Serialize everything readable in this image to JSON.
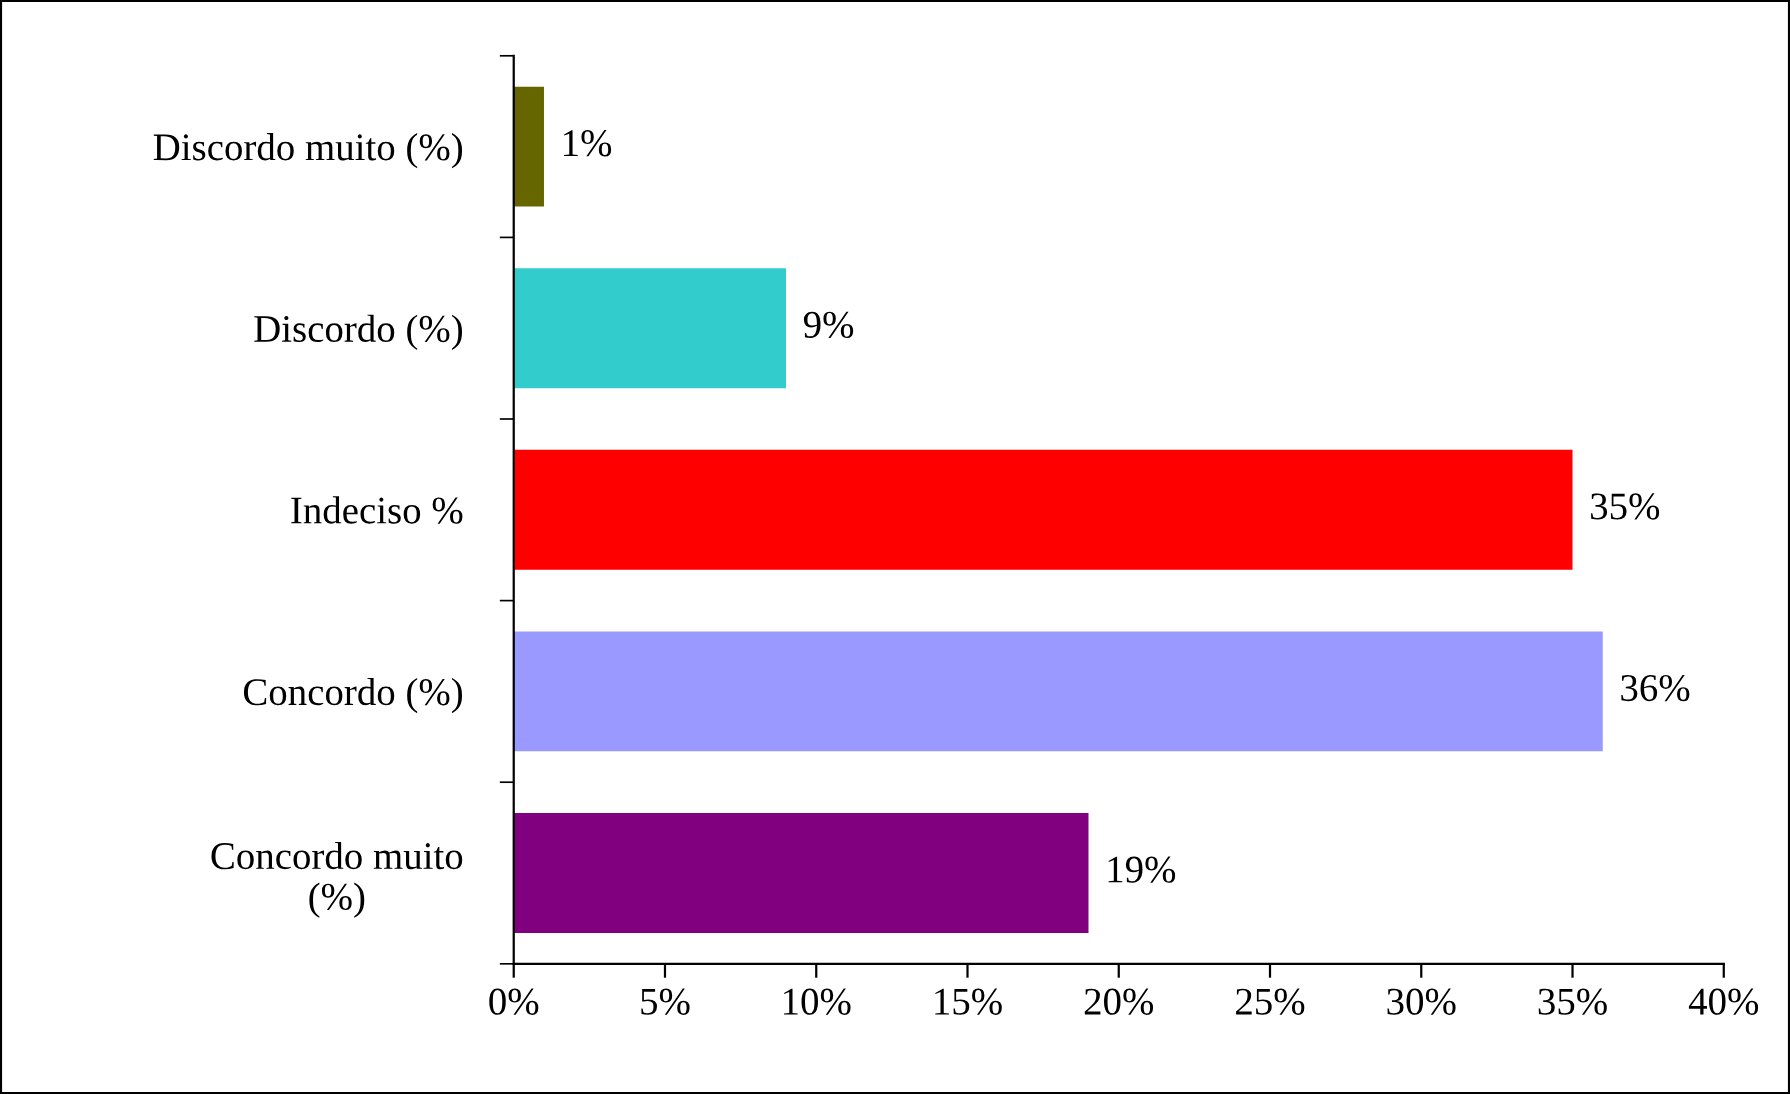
{
  "chart_data": {
    "type": "bar",
    "orientation": "horizontal",
    "categories": [
      "Discordo muito (%)",
      "Discordo (%)",
      "Indeciso %",
      "Concordo (%)",
      "Concordo muito\n(%)"
    ],
    "values": [
      1,
      9,
      35,
      36,
      19
    ],
    "colors": [
      "#666600",
      "#33cccc",
      "#ff0000",
      "#9999ff",
      "#800080"
    ],
    "value_labels": [
      "1%",
      "9%",
      "35%",
      "36%",
      "19%"
    ],
    "xlim": [
      0,
      40
    ],
    "xticks": [
      {
        "value": 0,
        "label": "0%"
      },
      {
        "value": 5,
        "label": "5%"
      },
      {
        "value": 10,
        "label": "10%"
      },
      {
        "value": 15,
        "label": "15%"
      },
      {
        "value": 20,
        "label": "20%"
      },
      {
        "value": 25,
        "label": "25%"
      },
      {
        "value": 30,
        "label": "30%"
      },
      {
        "value": 35,
        "label": "35%"
      },
      {
        "value": 40,
        "label": "40%"
      }
    ],
    "grid": false,
    "legend": false
  }
}
